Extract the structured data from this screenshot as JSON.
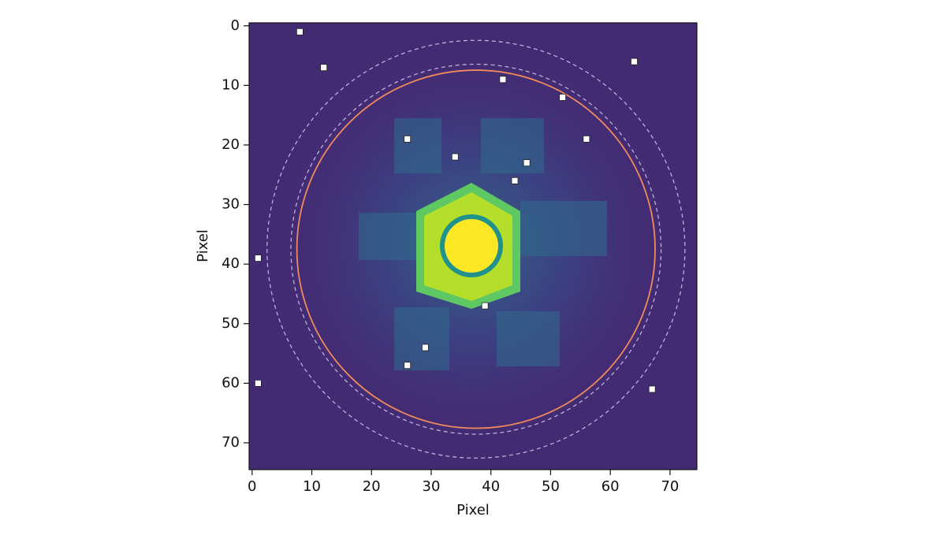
{
  "chart_data": {
    "type": "image",
    "xlabel": "Pixel",
    "ylabel": "Pixel",
    "xlim": [
      -0.5,
      74.5
    ],
    "ylim": [
      74.5,
      -0.5
    ],
    "xticks": [
      0,
      10,
      20,
      30,
      40,
      50,
      60,
      70
    ],
    "yticks": [
      0,
      10,
      20,
      30,
      40,
      50,
      60,
      70
    ],
    "markers": {
      "color": "#ffffff",
      "x": [
        8,
        12,
        64,
        42,
        52,
        26,
        56,
        34,
        46,
        44,
        1,
        39,
        29,
        26,
        1,
        67
      ],
      "y": [
        1,
        7,
        6,
        9,
        12,
        19,
        19,
        22,
        23,
        26,
        39,
        47,
        54,
        57,
        60,
        61
      ]
    },
    "circles": [
      {
        "center_x": 37.5,
        "center_y": 37.5,
        "radius": 30,
        "color": "#f08a5d",
        "linestyle": "solid"
      },
      {
        "center_x": 37.5,
        "center_y": 37.5,
        "radius": 31,
        "color": "#b9b0d8",
        "linestyle": "dashed"
      },
      {
        "center_x": 37.5,
        "center_y": 37.5,
        "radius": 35,
        "color": "#b9b0d8",
        "linestyle": "dashed"
      }
    ]
  }
}
